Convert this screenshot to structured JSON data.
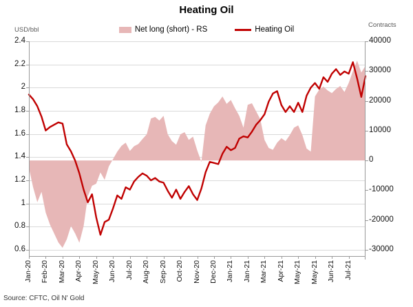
{
  "title": "Heating Oil",
  "legend": [
    {
      "label": "Net long (short) - RS",
      "type": "area"
    },
    {
      "label": "Heating Oil",
      "type": "line"
    }
  ],
  "axes": {
    "left": {
      "caption": "USD/bbl",
      "ticks": [
        "2.4",
        "2.2",
        "2",
        "1.8",
        "1.6",
        "1.4",
        "1.2",
        "1",
        "0.8",
        "0.6"
      ]
    },
    "right": {
      "caption": "Contracts",
      "ticks": [
        "40000",
        "30000",
        "20000",
        "10000",
        "0",
        "-10000",
        "-20000",
        "-30000"
      ]
    }
  },
  "source": "Source: CFTC, Oil N' Gold",
  "colors": {
    "line": "#C00000",
    "area": "#E7B7B7",
    "grid": "#D9D9D9",
    "axis": "#999999",
    "caption": "#595959"
  },
  "chart_data": {
    "type": "combo",
    "frequency": "weekly",
    "x_tick_labels": [
      "Jan-20",
      "Feb-20",
      "Mar-20",
      "Apr-20",
      "May-20",
      "Jun-20",
      "Jul-20",
      "Aug-20",
      "Sep-20",
      "Oct-20",
      "Nov-20",
      "Dec-20",
      "Jan-21",
      "Jan-21",
      "Mar-21",
      "Apr-21",
      "May-21",
      "May-21",
      "Jun-21",
      "Jul-21"
    ],
    "x_label_every_n_points": 4,
    "left_axis": {
      "label": "USD/bbl",
      "range": [
        0.6,
        2.4
      ],
      "tick_step": 0.2
    },
    "right_axis": {
      "label": "Contracts",
      "range": [
        -30000,
        40000
      ],
      "tick_step": 10000
    },
    "grid": true,
    "legend_position": "top",
    "series": [
      {
        "name": "Net long (short) - RS",
        "type": "area",
        "axis": "right",
        "color": "#E7B7B7",
        "values": [
          -2500,
          -9000,
          -14000,
          -10500,
          -17500,
          -21500,
          -24500,
          -27500,
          -29300,
          -26500,
          -22000,
          -24500,
          -27600,
          -22000,
          -12000,
          -8500,
          -7800,
          -4000,
          -6500,
          -2000,
          500,
          3000,
          4900,
          6000,
          3200,
          4800,
          5500,
          7200,
          8800,
          14100,
          14600,
          13400,
          15000,
          8800,
          6500,
          5300,
          8800,
          9500,
          6900,
          8000,
          3400,
          -500,
          11800,
          15700,
          18200,
          19500,
          21500,
          19000,
          20300,
          17500,
          15000,
          11000,
          18700,
          19200,
          16500,
          13800,
          6900,
          4200,
          3600,
          6000,
          7500,
          6500,
          8500,
          11000,
          11800,
          8500,
          4000,
          3000,
          21500,
          23800,
          24800,
          23500,
          22600,
          24000,
          25000,
          23000,
          26000,
          30000,
          33500,
          29500,
          31800
        ]
      },
      {
        "name": "Heating Oil",
        "type": "line",
        "axis": "left",
        "color": "#C00000",
        "values": [
          1.94,
          1.9,
          1.84,
          1.75,
          1.63,
          1.66,
          1.68,
          1.7,
          1.69,
          1.51,
          1.45,
          1.37,
          1.26,
          1.12,
          1.01,
          1.08,
          0.88,
          0.73,
          0.84,
          0.86,
          0.96,
          1.07,
          1.04,
          1.14,
          1.12,
          1.19,
          1.23,
          1.26,
          1.24,
          1.2,
          1.22,
          1.19,
          1.18,
          1.11,
          1.05,
          1.12,
          1.04,
          1.1,
          1.15,
          1.08,
          1.03,
          1.13,
          1.27,
          1.36,
          1.35,
          1.34,
          1.43,
          1.49,
          1.46,
          1.48,
          1.56,
          1.58,
          1.57,
          1.62,
          1.68,
          1.72,
          1.77,
          1.88,
          1.95,
          1.97,
          1.85,
          1.79,
          1.84,
          1.79,
          1.87,
          1.79,
          1.93,
          2.0,
          2.04,
          1.99,
          2.09,
          2.05,
          2.12,
          2.16,
          2.11,
          2.14,
          2.12,
          2.22,
          2.08,
          1.92,
          2.1
        ]
      }
    ]
  }
}
